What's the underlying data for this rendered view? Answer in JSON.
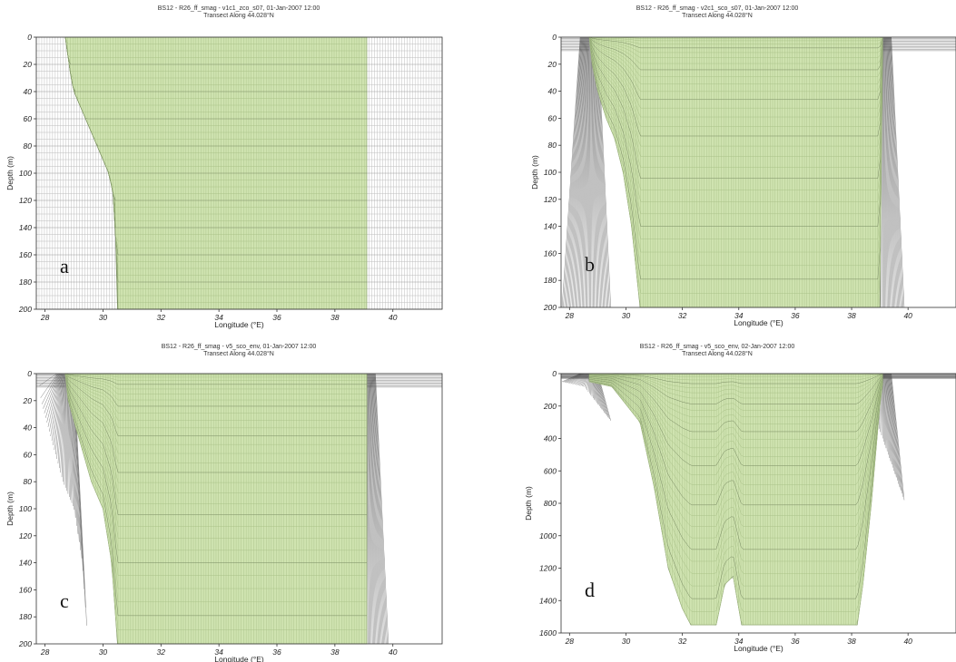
{
  "colors": {
    "grid": "#bdbdbd",
    "mesh": "#4d4d4d",
    "fill": "#cfe3b0",
    "frame": "#333333"
  },
  "chart_data": [
    {
      "id": "a",
      "type": "area",
      "title": "BS12 - R26_ff_smag - v1c1_zco_s07, 01-Jan-2007 12:00",
      "subtitle": "Transect Along 44.028°N",
      "xlabel": "Longitude (°E)",
      "ylabel": "Depth (m)",
      "xlim": [
        27.7,
        41.7
      ],
      "ylim": [
        0,
        200
      ],
      "y_inverted": true,
      "xticks": [
        28,
        30,
        32,
        34,
        36,
        38,
        40
      ],
      "yticks": [
        0,
        20,
        40,
        60,
        80,
        100,
        120,
        140,
        160,
        180,
        200
      ],
      "panel_label": "a",
      "grid": true,
      "active_region": {
        "x": [
          28.7,
          28.8,
          28.9,
          29.0,
          29.2,
          29.4,
          29.6,
          29.8,
          30.0,
          30.2,
          30.4,
          30.5,
          39.1,
          39.1
        ],
        "bottom": [
          0,
          15,
          30,
          40,
          50,
          60,
          70,
          80,
          90,
          100,
          120,
          200,
          200,
          0
        ]
      }
    },
    {
      "id": "b",
      "type": "area",
      "title": "BS12 - R26_ff_smag - v2c1_sco_s07, 01-Jan-2007 12:00",
      "subtitle": "Transect Along 44.028°N",
      "xlabel": "Longitude (°E)",
      "ylabel": "Depth (m)",
      "xlim": [
        27.7,
        41.7
      ],
      "ylim": [
        0,
        200
      ],
      "y_inverted": true,
      "xticks": [
        28,
        30,
        32,
        34,
        36,
        38,
        40
      ],
      "yticks": [
        0,
        20,
        40,
        60,
        80,
        100,
        120,
        140,
        160,
        180,
        200
      ],
      "panel_label": "b",
      "grid": false,
      "active_region": {
        "x": [
          28.7,
          28.8,
          29.0,
          29.3,
          29.6,
          29.9,
          30.2,
          30.5,
          39.0,
          39.1
        ],
        "bottom": [
          0,
          20,
          40,
          60,
          75,
          100,
          140,
          200,
          200,
          0
        ]
      }
    },
    {
      "id": "c",
      "type": "area",
      "title": "BS12 - R26_ff_smag - v5_sco_env, 01-Jan-2007 12:00",
      "subtitle": "Transect Along 44.028°N",
      "xlabel": "Longitude (°E)",
      "ylabel": "Depth (m)",
      "xlim": [
        27.7,
        41.7
      ],
      "ylim": [
        0,
        200
      ],
      "y_inverted": true,
      "xticks": [
        28,
        30,
        32,
        34,
        36,
        38,
        40
      ],
      "yticks": [
        0,
        20,
        40,
        60,
        80,
        100,
        120,
        140,
        160,
        180,
        200
      ],
      "panel_label": "c",
      "grid": false,
      "active_region": {
        "x": [
          28.7,
          28.8,
          29.2,
          29.6,
          30.0,
          30.3,
          30.5,
          39.1,
          39.1
        ],
        "bottom": [
          0,
          20,
          50,
          80,
          100,
          140,
          200,
          200,
          0
        ]
      }
    },
    {
      "id": "d",
      "type": "area",
      "title": "BS12 - R26_ff_smag - v5_sco_env, 02-Jan-2007 12:00",
      "subtitle": "Transect Along 44.028°N",
      "xlabel": "Longitude (°E)",
      "ylabel": "Depth (m)",
      "xlim": [
        27.7,
        41.7
      ],
      "ylim": [
        0,
        1600
      ],
      "y_inverted": true,
      "xticks": [
        28,
        30,
        32,
        34,
        36,
        38,
        40
      ],
      "yticks": [
        0,
        200,
        400,
        600,
        800,
        1000,
        1200,
        1400,
        1600
      ],
      "panel_label": "d",
      "grid": false,
      "active_region": {
        "x": [
          28.7,
          29.5,
          30.5,
          31.0,
          31.5,
          32.0,
          32.3,
          33.2,
          33.5,
          33.8,
          34.1,
          34.3,
          38.2,
          38.4,
          38.7,
          39.0,
          39.1
        ],
        "bottom": [
          50,
          80,
          300,
          700,
          1200,
          1450,
          1550,
          1550,
          1300,
          1250,
          1550,
          1550,
          1550,
          1300,
          800,
          200,
          60
        ]
      }
    }
  ]
}
